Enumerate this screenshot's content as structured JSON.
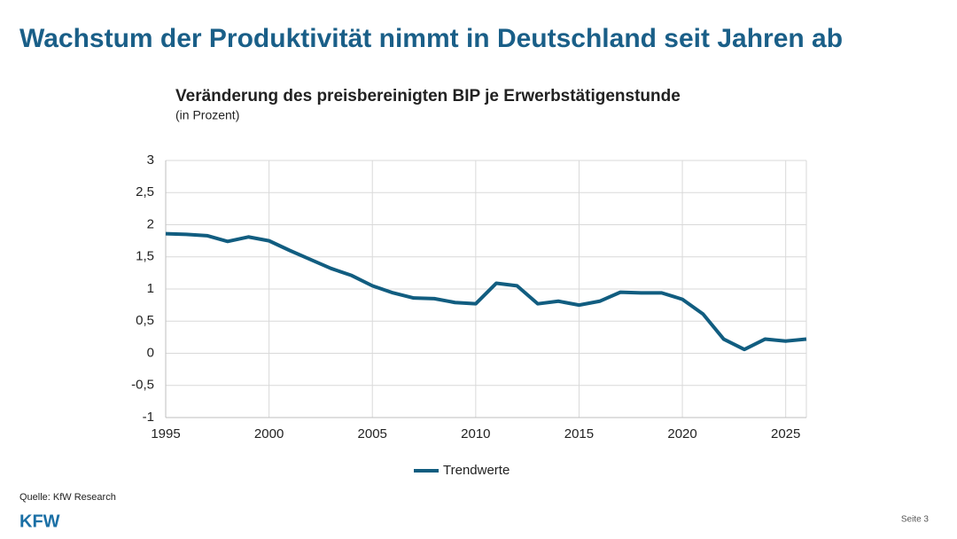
{
  "slide_title": "Wachstum der Produktivität nimmt in Deutschland seit Jahren ab",
  "source": "Quelle: KfW Research",
  "logo": "KFW",
  "page_number": "Seite 3",
  "chart_data": {
    "type": "line",
    "title": "Veränderung des preisbereinigten BIP je Erwerbstätigenstunde",
    "subtitle": "(in Prozent)",
    "x": [
      1995,
      1996,
      1997,
      1998,
      1999,
      2000,
      2001,
      2002,
      2003,
      2004,
      2005,
      2006,
      2007,
      2008,
      2009,
      2010,
      2011,
      2012,
      2013,
      2014,
      2015,
      2016,
      2017,
      2018,
      2019,
      2020,
      2021,
      2022,
      2023,
      2024,
      2025,
      2026
    ],
    "series": [
      {
        "name": "Trendwerte",
        "color": "#115d80",
        "values": [
          1.86,
          1.85,
          1.83,
          1.74,
          1.81,
          1.75,
          1.6,
          1.46,
          1.32,
          1.21,
          1.05,
          0.94,
          0.86,
          0.85,
          0.79,
          0.77,
          1.09,
          1.05,
          0.77,
          0.81,
          0.75,
          0.81,
          0.95,
          0.94,
          0.94,
          0.84,
          0.61,
          0.22,
          0.06,
          0.22,
          0.19,
          0.22
        ]
      }
    ],
    "xlim": [
      1995,
      2026
    ],
    "xticks": [
      1995,
      2000,
      2005,
      2010,
      2015,
      2020,
      2025
    ],
    "ylim": [
      -1,
      3
    ],
    "yticks": [
      -1,
      {
        "value": -0.5,
        "label": "-0,5"
      },
      0,
      {
        "value": 0.5,
        "label": "0,5"
      },
      1,
      {
        "value": 1.5,
        "label": "1,5"
      },
      2,
      {
        "value": 2.5,
        "label": "2,5"
      },
      3
    ],
    "grid": true,
    "legend": "bottom"
  }
}
